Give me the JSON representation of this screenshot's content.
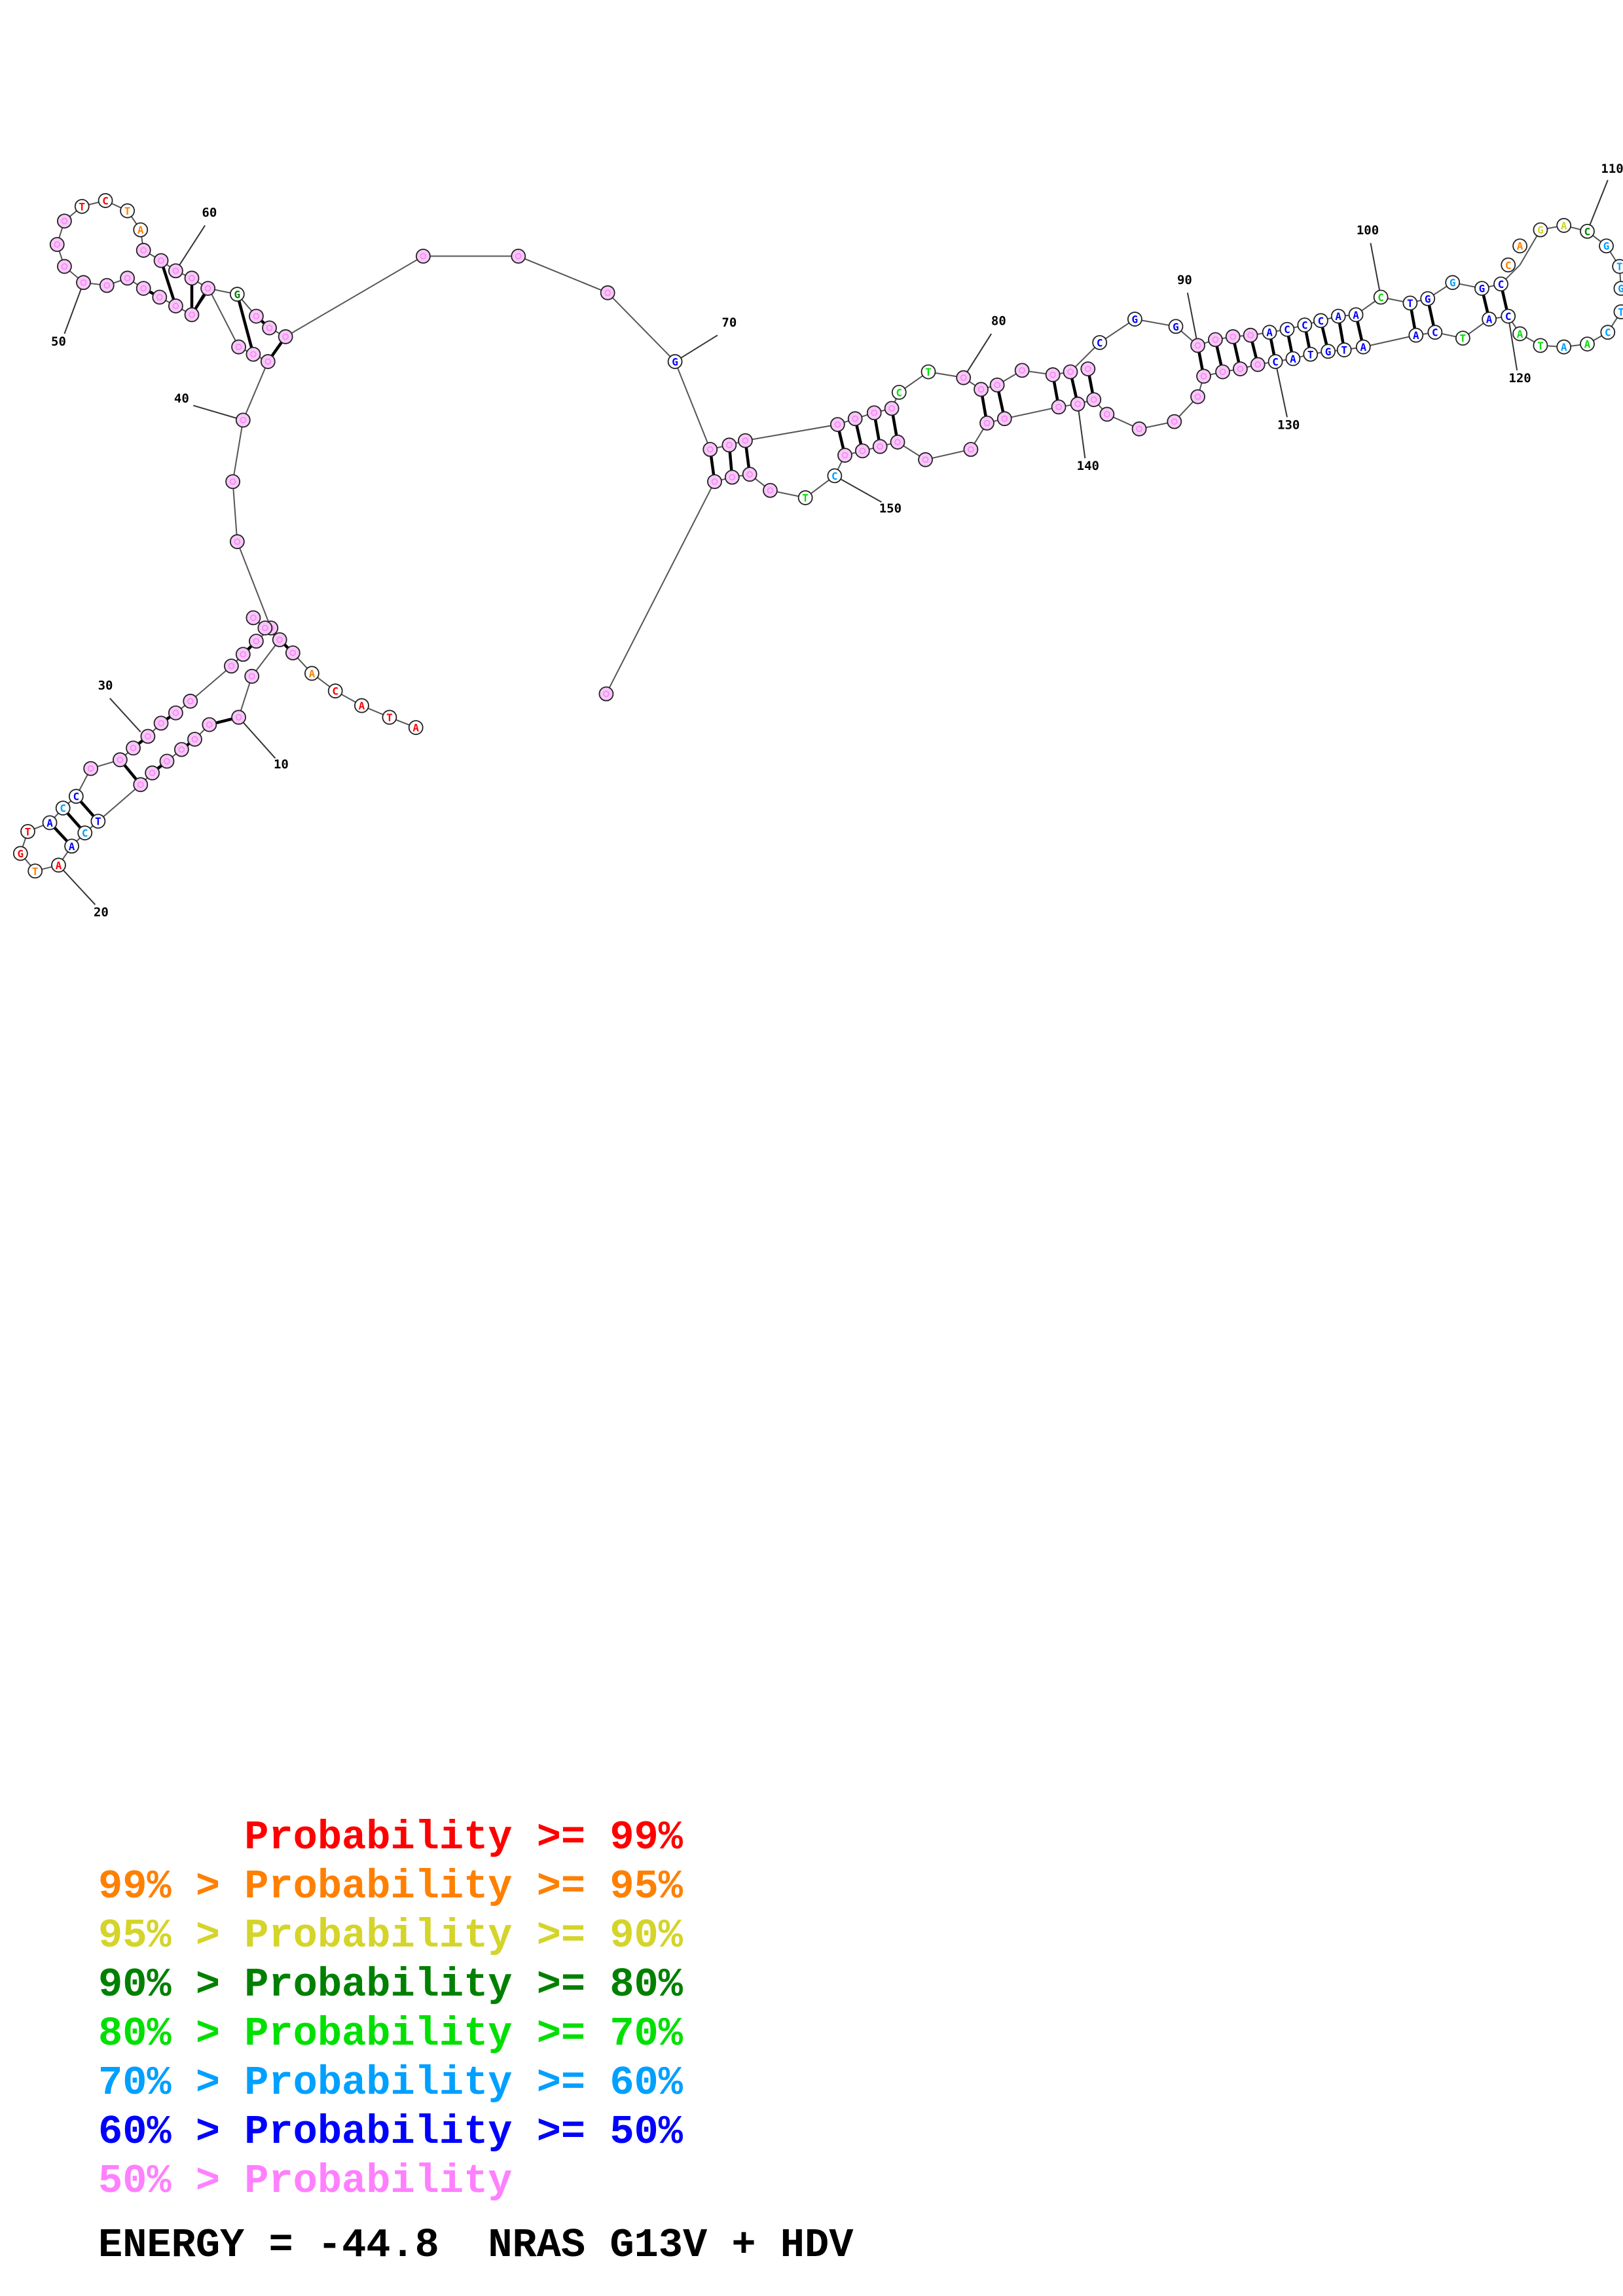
{
  "legend": [
    {
      "text": "      Probability >= 99%",
      "color": "#ff0000"
    },
    {
      "text": "99% > Probability >= 95%",
      "color": "#ff8000"
    },
    {
      "text": "95% > Probability >= 90%",
      "color": "#d4d42a"
    },
    {
      "text": "90% > Probability >= 80%",
      "color": "#008000"
    },
    {
      "text": "80% > Probability >= 70%",
      "color": "#00e000"
    },
    {
      "text": "70% > Probability >= 60%",
      "color": "#00a0ff"
    },
    {
      "text": "60% > Probability >= 50%",
      "color": "#0000ff"
    },
    {
      "text": "50% > Probability",
      "color": "#ff80ff"
    }
  ],
  "energy_label": "ENERGY = ",
  "energy_value": "-44.8",
  "sequence_name": "NRAS G13V + HDV",
  "position_labels": [
    "10",
    "20",
    "30",
    "40",
    "50",
    "60",
    "70",
    "80",
    "90",
    "100",
    "110",
    "120",
    "130",
    "140",
    "150"
  ],
  "structure": {
    "node_letters": [
      "A",
      "T",
      "A",
      "C",
      "A",
      "T",
      "C",
      "A",
      "A",
      "T",
      "G",
      "T",
      "A",
      "C",
      "C",
      "T",
      "C",
      "T",
      "A",
      "G",
      "G",
      "C",
      "T",
      "C",
      "G",
      "G",
      "A",
      "C",
      "C",
      "C",
      "A",
      "A",
      "C",
      "T",
      "G",
      "G",
      "G",
      "C",
      "C",
      "A",
      "G",
      "A",
      "C",
      "G",
      "T",
      "G",
      "T",
      "C",
      "A"
    ],
    "probability_colors": [
      "#ff80ff",
      "#ff8000",
      "#ff0000",
      "#d4d42a",
      "#008000",
      "#00e000",
      "#00a0ff",
      "#0000ff"
    ]
  }
}
